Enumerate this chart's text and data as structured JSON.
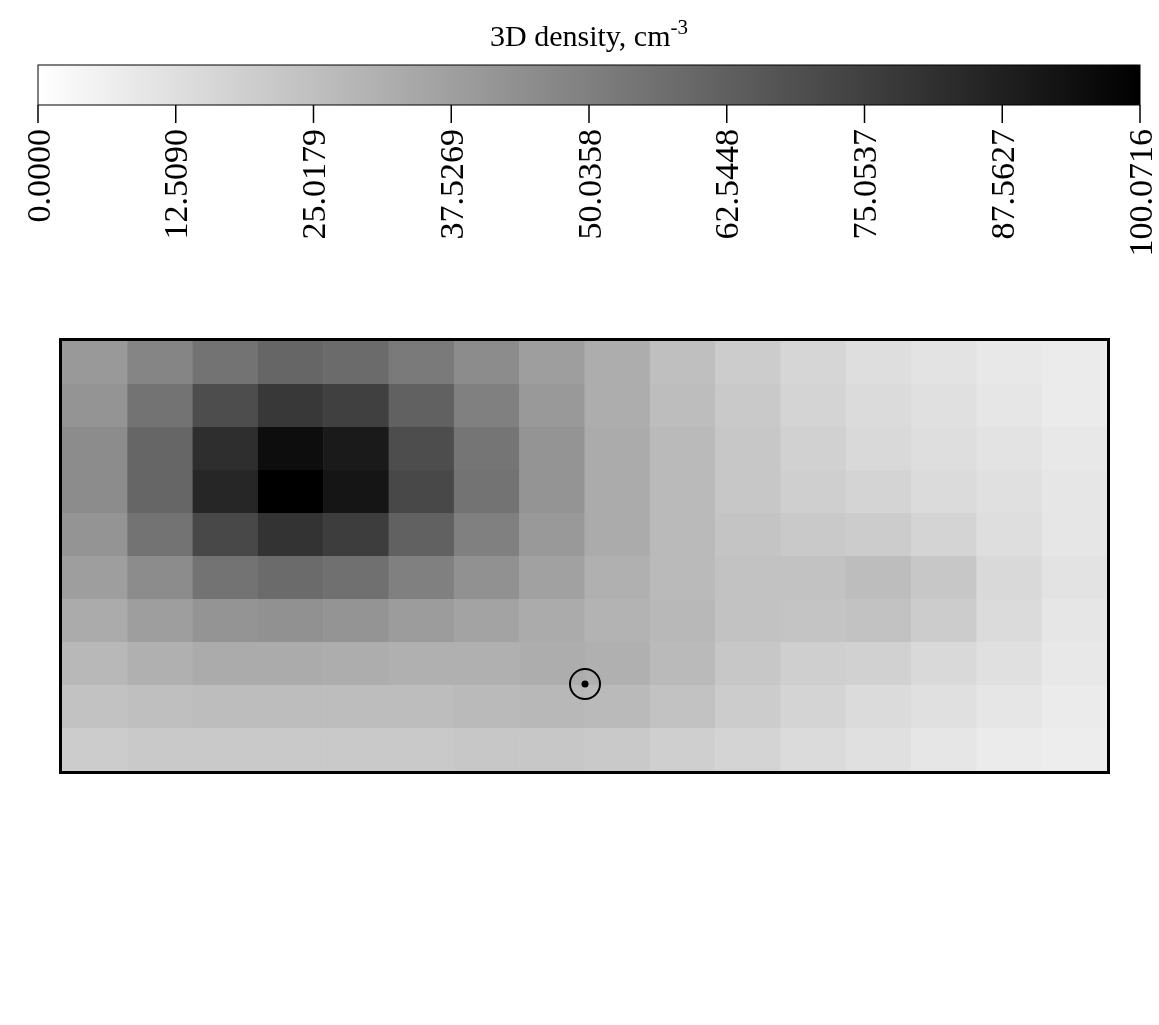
{
  "chart_data": {
    "type": "heatmap",
    "clabel": "3D density, cm$^{-3}$",
    "categories": [
      null,
      null,
      null,
      null,
      null,
      null,
      null,
      null,
      null,
      null,
      null,
      null,
      null,
      null,
      null,
      null
    ],
    "y_categories": [
      null,
      null,
      null,
      null,
      null,
      null,
      null,
      null,
      null,
      null
    ],
    "cells": [
      [
        40,
        48,
        55,
        60,
        58,
        52,
        45,
        38,
        32,
        25,
        20,
        16,
        13,
        11,
        9,
        8
      ],
      [
        42,
        55,
        70,
        78,
        75,
        62,
        50,
        40,
        32,
        26,
        21,
        17,
        14,
        12,
        10,
        8
      ],
      [
        45,
        60,
        82,
        95,
        90,
        70,
        54,
        42,
        33,
        27,
        22,
        18,
        15,
        13,
        11,
        9
      ],
      [
        45,
        60,
        85,
        100,
        92,
        72,
        55,
        42,
        33,
        27,
        22,
        19,
        17,
        14,
        12,
        10
      ],
      [
        42,
        55,
        72,
        80,
        76,
        62,
        50,
        40,
        33,
        27,
        23,
        21,
        20,
        17,
        13,
        10
      ],
      [
        38,
        45,
        55,
        58,
        56,
        50,
        43,
        37,
        31,
        27,
        24,
        24,
        26,
        22,
        15,
        11
      ],
      [
        33,
        38,
        42,
        43,
        42,
        39,
        36,
        33,
        30,
        28,
        24,
        23,
        24,
        20,
        14,
        10
      ],
      [
        28,
        31,
        33,
        33,
        32,
        31,
        31,
        32,
        31,
        27,
        22,
        19,
        18,
        15,
        12,
        9
      ],
      [
        24,
        25,
        26,
        26,
        26,
        26,
        27,
        28,
        27,
        24,
        20,
        17,
        14,
        12,
        10,
        8
      ],
      [
        20,
        21,
        21,
        21,
        21,
        21,
        22,
        22,
        21,
        19,
        17,
        14,
        12,
        10,
        8,
        7
      ]
    ],
    "clim": [
      0,
      100.0716
    ],
    "cticks": [
      {
        "value": 0,
        "label": "0.0000"
      },
      {
        "value": 12.509,
        "label": "12.5090"
      },
      {
        "value": 25.0179,
        "label": "25.0179"
      },
      {
        "value": 37.5269,
        "label": "37.5269"
      },
      {
        "value": 50.0358,
        "label": "50.0358"
      },
      {
        "value": 62.5448,
        "label": "62.5448"
      },
      {
        "value": 75.0537,
        "label": "75.0537"
      },
      {
        "value": 87.5627,
        "label": "87.5627"
      },
      {
        "value": 100.0716,
        "label": "100.0716"
      }
    ]
  }
}
